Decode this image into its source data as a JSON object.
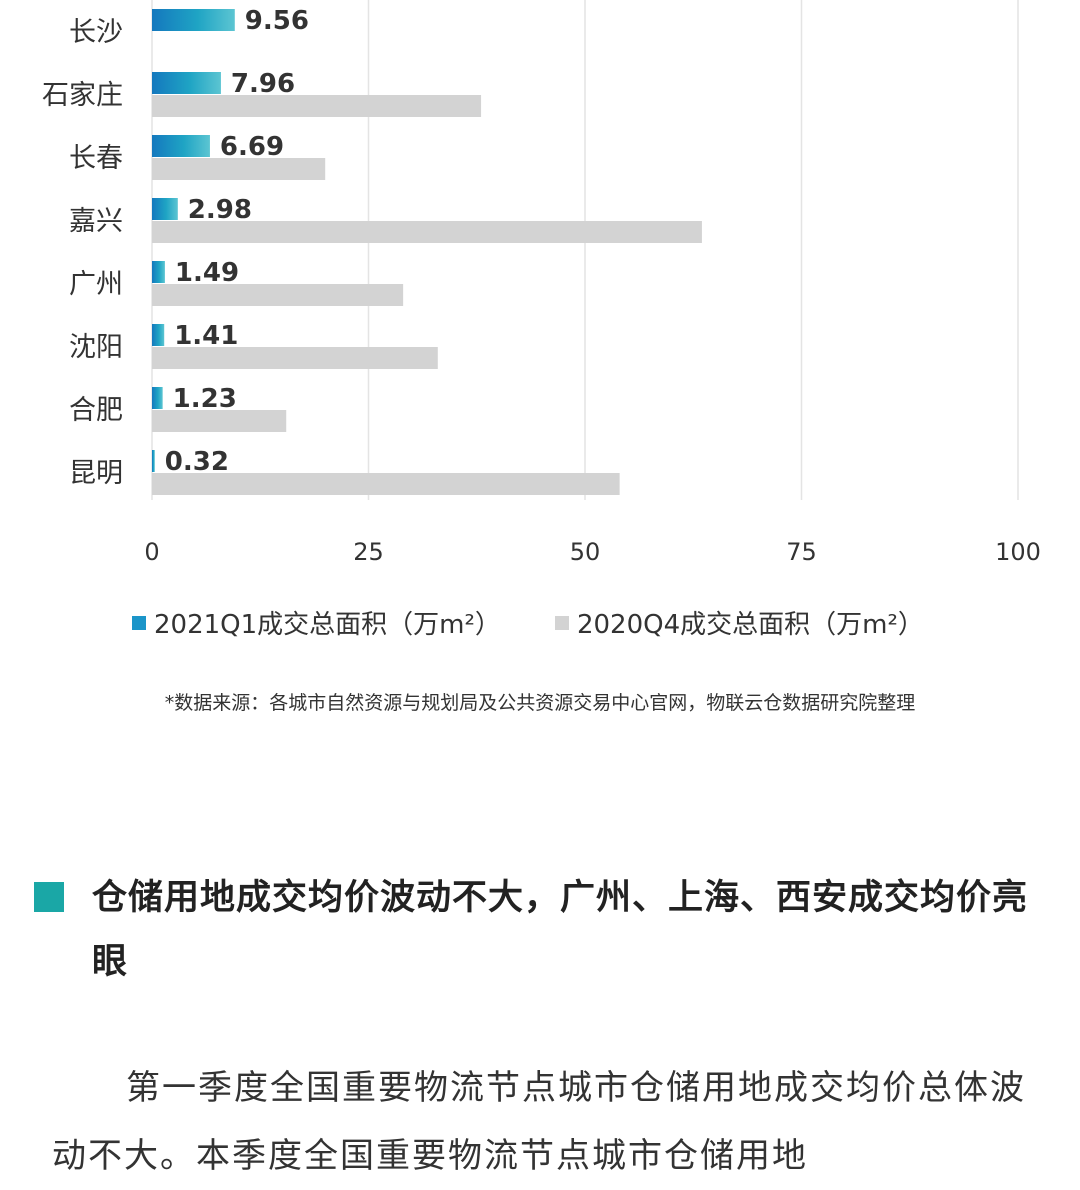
{
  "chart_data": {
    "type": "bar",
    "orientation": "horizontal",
    "categories": [
      "长沙",
      "石家庄",
      "长春",
      "嘉兴",
      "广州",
      "沈阳",
      "合肥",
      "昆明"
    ],
    "series": [
      {
        "name": "2021Q1成交总面积（万m²）",
        "color": "#1b95c9",
        "values": [
          9.56,
          7.96,
          6.69,
          2.98,
          1.49,
          1.41,
          1.23,
          0.32
        ]
      },
      {
        "name": "2020Q4成交总面积（万m²）",
        "color": "#d3d3d3",
        "values": [
          null,
          38,
          20,
          63.5,
          29,
          33,
          15.5,
          54
        ]
      }
    ],
    "data_labels": [
      "9.56",
      "7.96",
      "6.69",
      "2.98",
      "1.49",
      "1.41",
      "1.23",
      "0.32"
    ],
    "x_ticks": [
      "0",
      "25",
      "50",
      "75",
      "100"
    ],
    "xlim": [
      0,
      100
    ],
    "grid": "vertical",
    "legend_position": "bottom",
    "title": "",
    "xlabel": "",
    "ylabel": ""
  },
  "source_note": "*数据来源：各城市自然资源与规划局及公共资源交易中心官网，物联云仓数据研究院整理",
  "section": {
    "heading": "仓储用地成交均价波动不大，广州、上海、西安成交均价亮眼",
    "accent_color": "#1aa7a6"
  },
  "body": {
    "paragraph": "第一季度全国重要物流节点城市仓储用地成交均价总体波动不大。本季度全国重要物流节点城市仓储用地"
  }
}
